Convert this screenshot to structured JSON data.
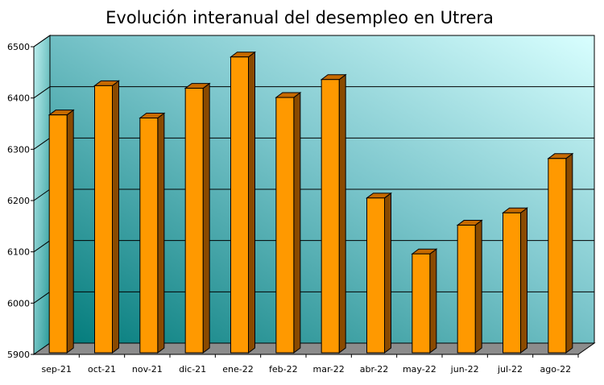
{
  "chart_data": {
    "type": "bar",
    "title": "Evolución interanual del desempleo en Utrera",
    "xlabel": "",
    "ylabel": "",
    "categories": [
      "sep-21",
      "oct-21",
      "nov-21",
      "dic-21",
      "ene-22",
      "feb-22",
      "mar-22",
      "abr-22",
      "may-22",
      "jun-22",
      "jul-22",
      "ago-22"
    ],
    "values": [
      6367,
      6424,
      6361,
      6419,
      6480,
      6401,
      6436,
      6205,
      6096,
      6152,
      6176,
      6282
    ],
    "ylim": [
      5900,
      6500
    ],
    "yticks": [
      5900,
      6000,
      6100,
      6200,
      6300,
      6400,
      6500
    ],
    "grid": true,
    "legend": "none",
    "colors": {
      "bar_front": "#ff9900",
      "bar_top": "#c66a00",
      "bar_side": "#8a4a00",
      "wall_light": "#d8ffff",
      "wall_dark": "#007878",
      "floor": "#8a8a8a"
    }
  }
}
